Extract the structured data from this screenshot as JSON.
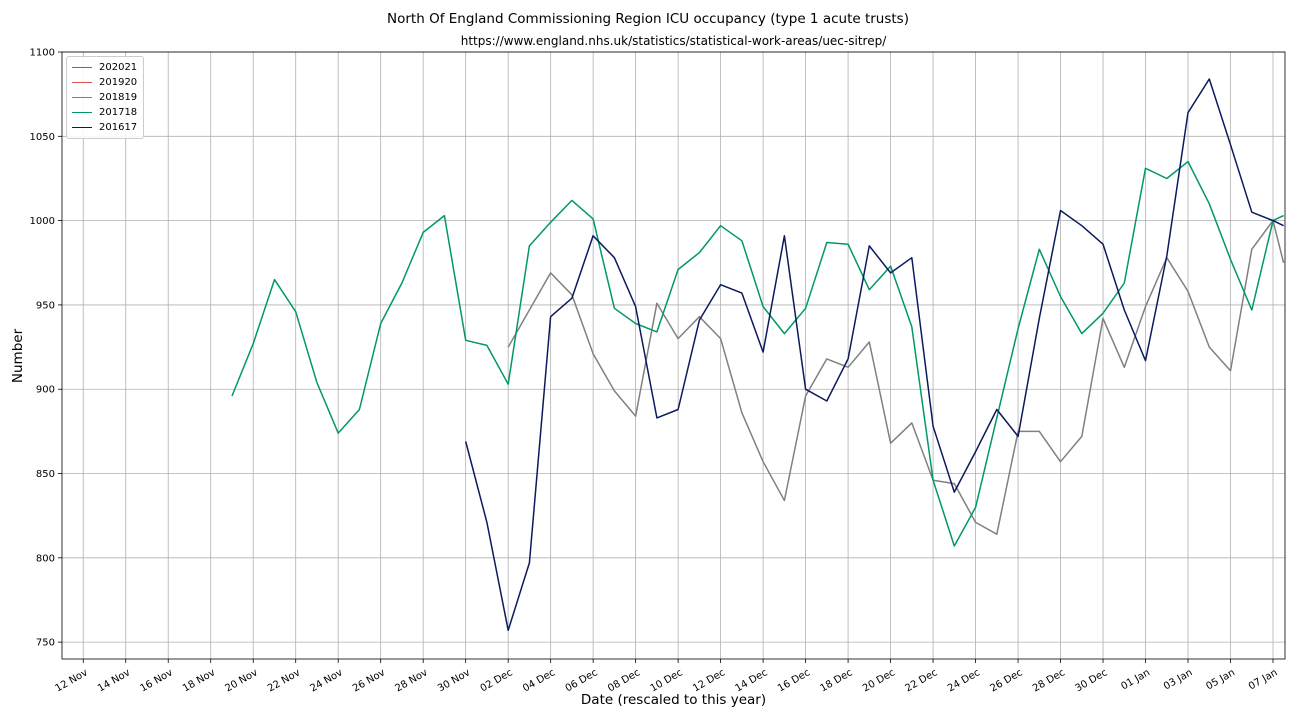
{
  "chart_data": {
    "type": "line",
    "title": "North Of England Commissioning Region ICU occupancy (type 1 acute trusts)",
    "subtitle": "https://www.england.nhs.uk/statistics/statistical-work-areas/uec-sitrep/",
    "xlabel": "Date (rescaled to this year)",
    "ylabel": "Number",
    "xlim": [
      "2020-11-11",
      "2021-01-07"
    ],
    "ylim": [
      740,
      1100
    ],
    "yticks": [
      750,
      800,
      850,
      900,
      950,
      1000,
      1050,
      1100
    ],
    "xticks": [
      {
        "date": "2020-11-12",
        "label": "12 Nov"
      },
      {
        "date": "2020-11-14",
        "label": "14 Nov"
      },
      {
        "date": "2020-11-16",
        "label": "16 Nov"
      },
      {
        "date": "2020-11-18",
        "label": "18 Nov"
      },
      {
        "date": "2020-11-20",
        "label": "20 Nov"
      },
      {
        "date": "2020-11-22",
        "label": "22 Nov"
      },
      {
        "date": "2020-11-24",
        "label": "24 Nov"
      },
      {
        "date": "2020-11-26",
        "label": "26 Nov"
      },
      {
        "date": "2020-11-28",
        "label": "28 Nov"
      },
      {
        "date": "2020-11-30",
        "label": "30 Nov"
      },
      {
        "date": "2020-12-02",
        "label": "02 Dec"
      },
      {
        "date": "2020-12-04",
        "label": "04 Dec"
      },
      {
        "date": "2020-12-06",
        "label": "06 Dec"
      },
      {
        "date": "2020-12-08",
        "label": "08 Dec"
      },
      {
        "date": "2020-12-10",
        "label": "10 Dec"
      },
      {
        "date": "2020-12-12",
        "label": "12 Dec"
      },
      {
        "date": "2020-12-14",
        "label": "14 Dec"
      },
      {
        "date": "2020-12-16",
        "label": "16 Dec"
      },
      {
        "date": "2020-12-18",
        "label": "18 Dec"
      },
      {
        "date": "2020-12-20",
        "label": "20 Dec"
      },
      {
        "date": "2020-12-22",
        "label": "22 Dec"
      },
      {
        "date": "2020-12-24",
        "label": "24 Dec"
      },
      {
        "date": "2020-12-26",
        "label": "26 Dec"
      },
      {
        "date": "2020-12-28",
        "label": "28 Dec"
      },
      {
        "date": "2020-12-30",
        "label": "30 Dec"
      },
      {
        "date": "2021-01-01",
        "label": "01 Jan"
      },
      {
        "date": "2021-01-03",
        "label": "03 Jan"
      },
      {
        "date": "2021-01-05",
        "label": "05 Jan"
      },
      {
        "date": "2021-01-07",
        "label": "07 Jan"
      }
    ],
    "grid": true,
    "legend_position": "top-left",
    "series": [
      {
        "name": "202021",
        "color": "#2b7bd6",
        "points": []
      },
      {
        "name": "201920",
        "color": "#d9534f",
        "points": []
      },
      {
        "name": "201819",
        "color": "#808080",
        "points": [
          [
            "2020-12-02",
            925
          ],
          [
            "2020-12-03",
            947
          ],
          [
            "2020-12-04",
            969
          ],
          [
            "2020-12-05",
            956
          ],
          [
            "2020-12-06",
            921
          ],
          [
            "2020-12-07",
            899
          ],
          [
            "2020-12-08",
            884
          ],
          [
            "2020-12-09",
            951
          ],
          [
            "2020-12-10",
            930
          ],
          [
            "2020-12-11",
            943
          ],
          [
            "2020-12-12",
            930
          ],
          [
            "2020-12-13",
            886
          ],
          [
            "2020-12-14",
            857
          ],
          [
            "2020-12-15",
            834
          ],
          [
            "2020-12-16",
            896
          ],
          [
            "2020-12-17",
            918
          ],
          [
            "2020-12-18",
            913
          ],
          [
            "2020-12-19",
            928
          ],
          [
            "2020-12-20",
            868
          ],
          [
            "2020-12-21",
            880
          ],
          [
            "2020-12-22",
            846
          ],
          [
            "2020-12-23",
            844
          ],
          [
            "2020-12-24",
            821
          ],
          [
            "2020-12-25",
            814
          ],
          [
            "2020-12-26",
            875
          ],
          [
            "2020-12-27",
            875
          ],
          [
            "2020-12-28",
            857
          ],
          [
            "2020-12-29",
            872
          ],
          [
            "2020-12-30",
            942
          ],
          [
            "2020-12-31",
            913
          ],
          [
            "2021-01-01",
            949
          ],
          [
            "2021-01-02",
            978
          ],
          [
            "2021-01-03",
            958
          ],
          [
            "2021-01-04",
            925
          ],
          [
            "2021-01-05",
            911
          ],
          [
            "2021-01-06",
            983
          ],
          [
            "2021-01-07",
            1000
          ],
          [
            "2021-01-07.5",
            975
          ]
        ]
      },
      {
        "name": "201718",
        "color": "#009966",
        "points": [
          [
            "2020-11-19",
            896
          ],
          [
            "2020-11-20",
            927
          ],
          [
            "2020-11-21",
            965
          ],
          [
            "2020-11-22",
            946
          ],
          [
            "2020-11-23",
            904
          ],
          [
            "2020-11-24",
            874
          ],
          [
            "2020-11-25",
            888
          ],
          [
            "2020-11-26",
            939
          ],
          [
            "2020-11-27",
            963
          ],
          [
            "2020-11-28",
            993
          ],
          [
            "2020-11-29",
            1003
          ],
          [
            "2020-11-30",
            929
          ],
          [
            "2020-12-01",
            926
          ],
          [
            "2020-12-02",
            903
          ],
          [
            "2020-12-03",
            985
          ],
          [
            "2020-12-04",
            999
          ],
          [
            "2020-12-05",
            1012
          ],
          [
            "2020-12-06",
            1001
          ],
          [
            "2020-12-07",
            948
          ],
          [
            "2020-12-08",
            939
          ],
          [
            "2020-12-09",
            934
          ],
          [
            "2020-12-10",
            971
          ],
          [
            "2020-12-11",
            981
          ],
          [
            "2020-12-12",
            997
          ],
          [
            "2020-12-13",
            988
          ],
          [
            "2020-12-14",
            949
          ],
          [
            "2020-12-15",
            933
          ],
          [
            "2020-12-16",
            948
          ],
          [
            "2020-12-17",
            987
          ],
          [
            "2020-12-18",
            986
          ],
          [
            "2020-12-19",
            959
          ],
          [
            "2020-12-20",
            973
          ],
          [
            "2020-12-21",
            937
          ],
          [
            "2020-12-22",
            846
          ],
          [
            "2020-12-23",
            807
          ],
          [
            "2020-12-24",
            830
          ],
          [
            "2020-12-25",
            883
          ],
          [
            "2020-12-26",
            936
          ],
          [
            "2020-12-27",
            983
          ],
          [
            "2020-12-28",
            955
          ],
          [
            "2020-12-29",
            933
          ],
          [
            "2020-12-30",
            945
          ],
          [
            "2020-12-31",
            963
          ],
          [
            "2021-01-01",
            1031
          ],
          [
            "2021-01-02",
            1025
          ],
          [
            "2021-01-03",
            1035
          ],
          [
            "2021-01-04",
            1010
          ],
          [
            "2021-01-05",
            977
          ],
          [
            "2021-01-06",
            947
          ],
          [
            "2021-01-07",
            1000
          ],
          [
            "2021-01-07.5",
            1003
          ]
        ]
      },
      {
        "name": "201617",
        "color": "#0b1a5e",
        "points": [
          [
            "2020-11-30",
            869
          ],
          [
            "2020-12-01",
            821
          ],
          [
            "2020-12-02",
            757
          ],
          [
            "2020-12-03",
            797
          ],
          [
            "2020-12-04",
            943
          ],
          [
            "2020-12-05",
            954
          ],
          [
            "2020-12-06",
            991
          ],
          [
            "2020-12-07",
            978
          ],
          [
            "2020-12-08",
            949
          ],
          [
            "2020-12-09",
            883
          ],
          [
            "2020-12-10",
            888
          ],
          [
            "2020-12-11",
            941
          ],
          [
            "2020-12-12",
            962
          ],
          [
            "2020-12-13",
            957
          ],
          [
            "2020-12-14",
            922
          ],
          [
            "2020-12-15",
            991
          ],
          [
            "2020-12-16",
            900
          ],
          [
            "2020-12-17",
            893
          ],
          [
            "2020-12-18",
            918
          ],
          [
            "2020-12-19",
            985
          ],
          [
            "2020-12-20",
            969
          ],
          [
            "2020-12-21",
            978
          ],
          [
            "2020-12-22",
            878
          ],
          [
            "2020-12-23",
            839
          ],
          [
            "2020-12-24",
            863
          ],
          [
            "2020-12-25",
            888
          ],
          [
            "2020-12-26",
            872
          ],
          [
            "2020-12-27",
            942
          ],
          [
            "2020-12-28",
            1006
          ],
          [
            "2020-12-29",
            997
          ],
          [
            "2020-12-30",
            986
          ],
          [
            "2020-12-31",
            947
          ],
          [
            "2021-01-01",
            917
          ],
          [
            "2021-01-02",
            979
          ],
          [
            "2021-01-03",
            1064
          ],
          [
            "2021-01-04",
            1084
          ],
          [
            "2021-01-05",
            1045
          ],
          [
            "2021-01-06",
            1005
          ],
          [
            "2021-01-07",
            1000
          ],
          [
            "2021-01-07.5",
            997
          ]
        ]
      }
    ]
  }
}
